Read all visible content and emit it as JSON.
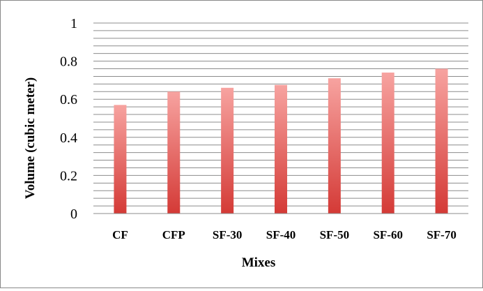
{
  "chart_data": {
    "type": "bar",
    "title": "",
    "xlabel": "Mixes",
    "ylabel": "Volume (cubic meter)",
    "categories": [
      "CF",
      "CFP",
      "SF-30",
      "SF-40",
      "SF-50",
      "SF-60",
      "SF-70"
    ],
    "values": [
      0.57,
      0.64,
      0.66,
      0.675,
      0.71,
      0.74,
      0.76
    ],
    "ylim": [
      0,
      1
    ],
    "yticks": [
      "0",
      "0.2",
      "0.4",
      "0.6",
      "0.8",
      "1"
    ],
    "minor_gridline_step": 0.04,
    "grid": true,
    "legend": "none",
    "bar_gradient": {
      "top": "#f7a3a0",
      "bottom": "#d43a36"
    },
    "gridline_color": "#8c8c8c"
  }
}
